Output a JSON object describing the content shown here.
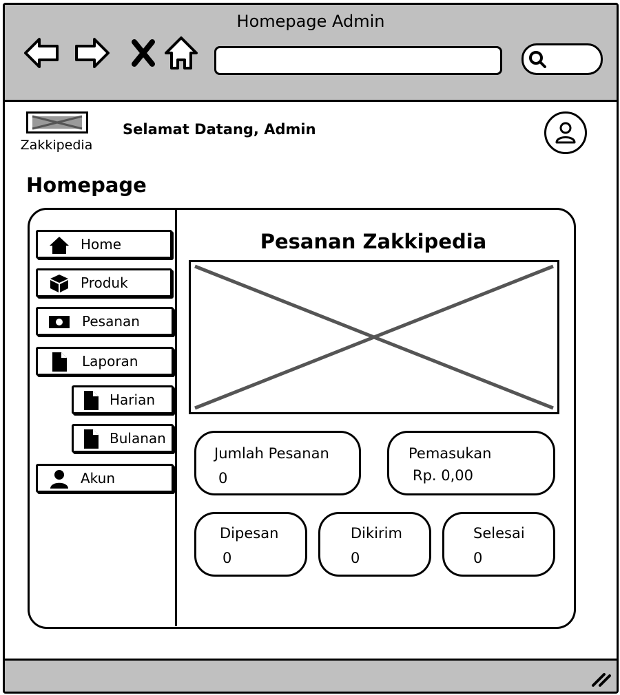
{
  "window": {
    "title": "Homepage Admin"
  },
  "header": {
    "logo_text": "Zakkipedia",
    "greeting": "Selamat Datang, Admin"
  },
  "page_title": "Homepage",
  "sidebar": {
    "items": [
      {
        "label": "Home",
        "icon": "home-icon"
      },
      {
        "label": "Produk",
        "icon": "cube-icon"
      },
      {
        "label": "Pesanan",
        "icon": "money-icon"
      },
      {
        "label": "Laporan",
        "icon": "file-icon"
      },
      {
        "label": "Harian",
        "icon": "file-icon"
      },
      {
        "label": "Bulanan",
        "icon": "file-icon"
      },
      {
        "label": "Akun",
        "icon": "user-icon"
      }
    ]
  },
  "main": {
    "title": "Pesanan Zakkipedia",
    "stats": {
      "jumlah_pesanan": {
        "label": "Jumlah Pesanan",
        "value": "0"
      },
      "pemasukan": {
        "label": "Pemasukan",
        "value": "Rp. 0,00"
      },
      "dipesan": {
        "label": "Dipesan",
        "value": "0"
      },
      "dikirim": {
        "label": "Dikirim",
        "value": "0"
      },
      "selesai": {
        "label": "Selesai",
        "value": "0"
      }
    }
  }
}
